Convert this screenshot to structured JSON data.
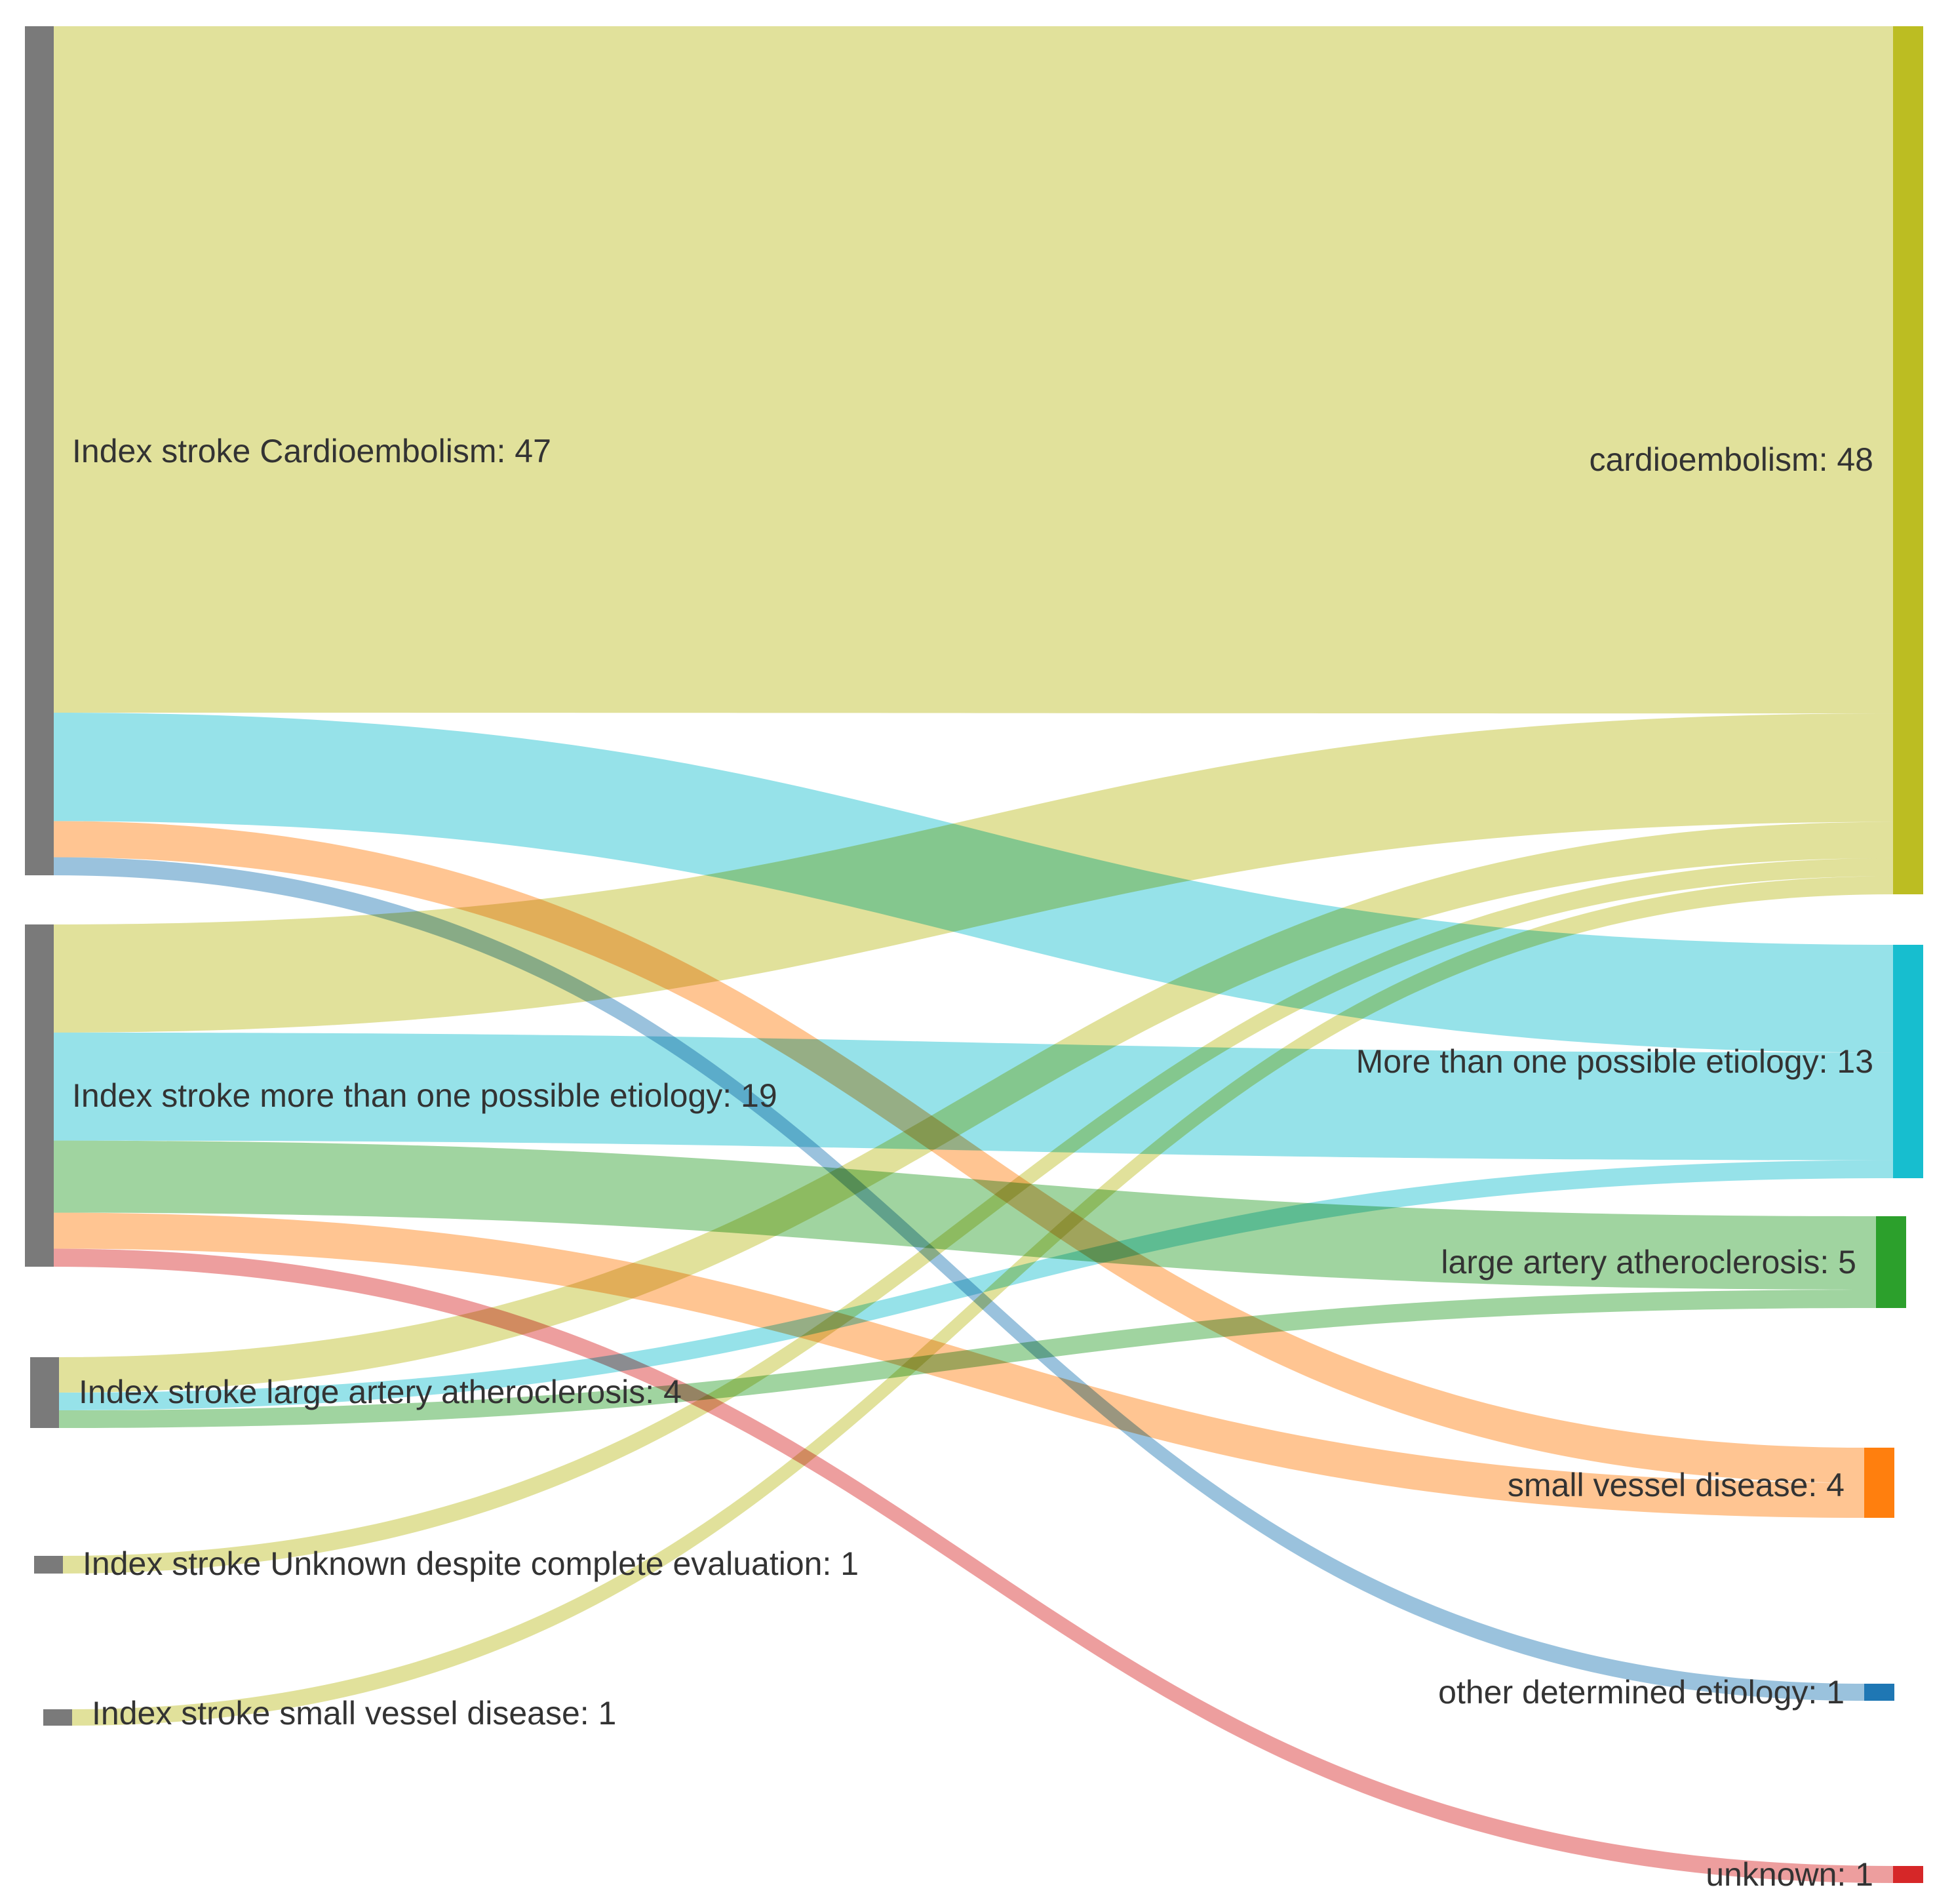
{
  "colors": {
    "source_node": "#7a7a7a",
    "cardioembolism": "#bcbd22",
    "more_than_one": "#17becf",
    "large_artery": "#2ca02c",
    "small_vessel": "#ff7f0e",
    "other_determined": "#1f77b4",
    "unknown": "#d62728"
  },
  "sources": [
    {
      "id": "s_ce",
      "label": "Index stroke Cardioembolism: 47"
    },
    {
      "id": "s_more",
      "label": "Index stroke more than one possible etiology: 19"
    },
    {
      "id": "s_laa",
      "label": "Index stroke large artery atheroclerosis: 4"
    },
    {
      "id": "s_unk",
      "label": "Index stroke Unknown despite complete evaluation: 1"
    },
    {
      "id": "s_svd",
      "label": "Index stroke small vessel disease: 1"
    }
  ],
  "targets": [
    {
      "id": "t_ce",
      "label": "cardioembolism: 48",
      "color_key": "cardioembolism"
    },
    {
      "id": "t_more",
      "label": "More than one possible etiology: 13",
      "color_key": "more_than_one"
    },
    {
      "id": "t_laa",
      "label": "large artery atheroclerosis: 5",
      "color_key": "large_artery"
    },
    {
      "id": "t_svd",
      "label": "small vessel disease: 4",
      "color_key": "small_vessel"
    },
    {
      "id": "t_other",
      "label": "other determined etiology: 1",
      "color_key": "other_determined"
    },
    {
      "id": "t_unk",
      "label": "unknown: 1",
      "color_key": "unknown"
    }
  ],
  "flows": [
    {
      "source": "s_ce",
      "target": "t_ce",
      "value": 38
    },
    {
      "source": "s_ce",
      "target": "t_more",
      "value": 6
    },
    {
      "source": "s_ce",
      "target": "t_svd",
      "value": 2
    },
    {
      "source": "s_ce",
      "target": "t_other",
      "value": 1
    },
    {
      "source": "s_more",
      "target": "t_ce",
      "value": 6
    },
    {
      "source": "s_more",
      "target": "t_more",
      "value": 6
    },
    {
      "source": "s_more",
      "target": "t_laa",
      "value": 4
    },
    {
      "source": "s_more",
      "target": "t_svd",
      "value": 2
    },
    {
      "source": "s_more",
      "target": "t_unk",
      "value": 1
    },
    {
      "source": "s_laa",
      "target": "t_ce",
      "value": 2
    },
    {
      "source": "s_laa",
      "target": "t_more",
      "value": 1
    },
    {
      "source": "s_laa",
      "target": "t_laa",
      "value": 1
    },
    {
      "source": "s_unk",
      "target": "t_ce",
      "value": 1
    },
    {
      "source": "s_svd",
      "target": "t_ce",
      "value": 1
    }
  ]
}
